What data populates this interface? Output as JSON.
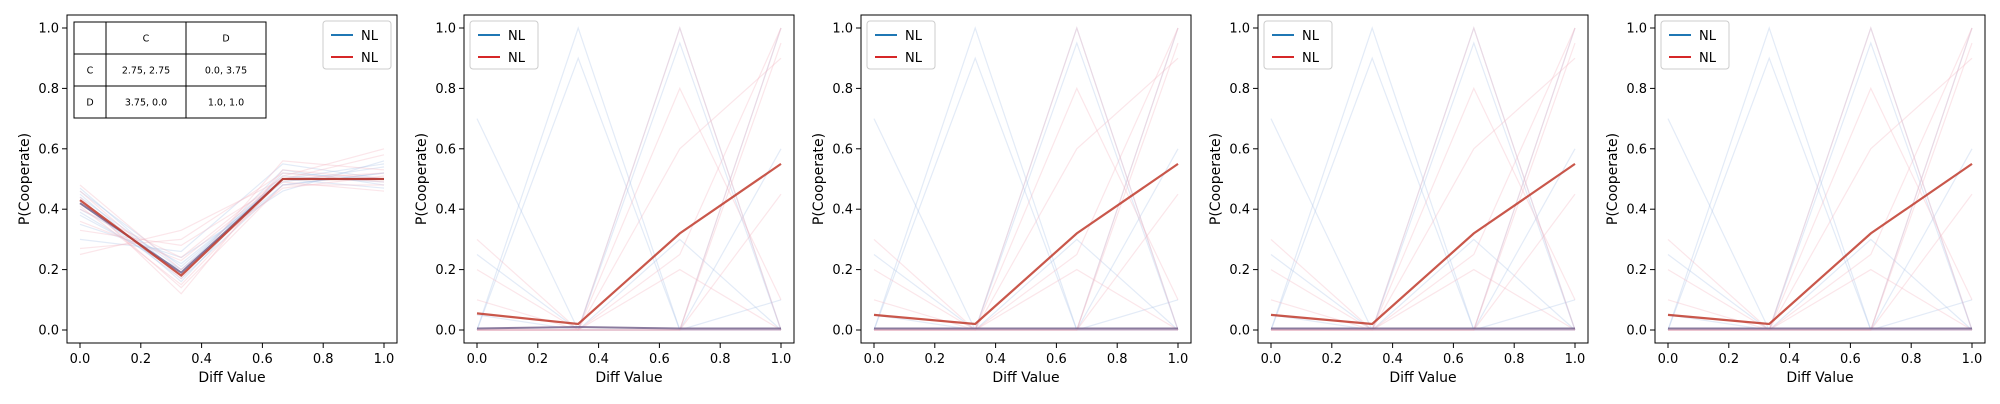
{
  "chart_data": [
    {
      "type": "line",
      "xlabel": "Diff Value",
      "ylabel": "P(Cooperate)",
      "xlim": [
        0,
        1
      ],
      "ylim": [
        0,
        1
      ],
      "xticks": [
        0.0,
        0.2,
        0.4,
        0.6,
        0.8,
        1.0
      ],
      "yticks": [
        0.0,
        0.2,
        0.4,
        0.6,
        0.8,
        1.0
      ],
      "x": [
        0,
        0.333,
        0.667,
        1
      ],
      "legend": {
        "position": "top-right",
        "entries": [
          {
            "label": "NL",
            "color": "#1f77b4"
          },
          {
            "label": "NL",
            "color": "#d62728"
          }
        ]
      },
      "series": [
        {
          "name": "NL",
          "color": "#1f77b4",
          "values": [
            0.42,
            0.19,
            0.5,
            0.5
          ]
        },
        {
          "name": "NL",
          "color": "#d62728",
          "values": [
            0.43,
            0.18,
            0.5,
            0.5
          ]
        }
      ],
      "faint_series_blue": [
        [
          0.38,
          0.2,
          0.48,
          0.52
        ],
        [
          0.45,
          0.16,
          0.52,
          0.5
        ],
        [
          0.4,
          0.22,
          0.49,
          0.54
        ],
        [
          0.47,
          0.18,
          0.5,
          0.47
        ],
        [
          0.35,
          0.24,
          0.46,
          0.56
        ],
        [
          0.44,
          0.2,
          0.51,
          0.49
        ],
        [
          0.3,
          0.26,
          0.55,
          0.5
        ],
        [
          0.42,
          0.17,
          0.48,
          0.52
        ],
        [
          0.46,
          0.21,
          0.5,
          0.55
        ],
        [
          0.39,
          0.19,
          0.53,
          0.48
        ]
      ],
      "faint_series_red": [
        [
          0.41,
          0.15,
          0.5,
          0.52
        ],
        [
          0.27,
          0.3,
          0.52,
          0.49
        ],
        [
          0.48,
          0.2,
          0.47,
          0.51
        ],
        [
          0.36,
          0.23,
          0.5,
          0.58
        ],
        [
          0.44,
          0.12,
          0.53,
          0.5
        ],
        [
          0.33,
          0.28,
          0.49,
          0.46
        ],
        [
          0.46,
          0.17,
          0.56,
          0.53
        ],
        [
          0.4,
          0.24,
          0.51,
          0.6
        ],
        [
          0.25,
          0.33,
          0.5,
          0.5
        ],
        [
          0.43,
          0.14,
          0.48,
          0.48
        ]
      ],
      "payoff_table": {
        "col_headers": [
          "",
          "C",
          "D"
        ],
        "rows": [
          [
            "C",
            "2.75, 2.75",
            "0.0, 3.75"
          ],
          [
            "D",
            "3.75, 0.0",
            "1.0, 1.0"
          ]
        ]
      }
    },
    {
      "type": "line",
      "xlabel": "Diff Value",
      "ylabel": "P(Cooperate)",
      "xlim": [
        0,
        1
      ],
      "ylim": [
        0,
        1
      ],
      "xticks": [
        0.0,
        0.2,
        0.4,
        0.6,
        0.8,
        1.0
      ],
      "yticks": [
        0.0,
        0.2,
        0.4,
        0.6,
        0.8,
        1.0
      ],
      "x": [
        0,
        0.333,
        0.667,
        1
      ],
      "legend": {
        "position": "top-left",
        "entries": [
          {
            "label": "NL",
            "color": "#1f77b4"
          },
          {
            "label": "NL",
            "color": "#d62728"
          }
        ]
      },
      "series": [
        {
          "name": "NL",
          "color": "#1f77b4",
          "values": [
            0.005,
            0.01,
            0.005,
            0.005
          ]
        },
        {
          "name": "NL",
          "color": "#d62728",
          "values": [
            0.055,
            0.02,
            0.32,
            0.55
          ]
        }
      ],
      "faint_series_blue": [
        [
          0.0,
          1.0,
          0.0,
          0.0
        ],
        [
          0.7,
          0.0,
          0.0,
          0.0
        ],
        [
          0.0,
          0.0,
          1.0,
          0.0
        ],
        [
          0.0,
          0.0,
          0.0,
          1.0
        ],
        [
          0.0,
          0.9,
          0.0,
          0.0
        ],
        [
          0.25,
          0.0,
          0.0,
          0.1
        ],
        [
          0.0,
          0.0,
          0.95,
          0.0
        ],
        [
          0.0,
          0.0,
          0.0,
          0.6
        ],
        [
          0.05,
          0.0,
          0.0,
          0.0
        ],
        [
          0.0,
          0.0,
          0.3,
          0.0
        ]
      ],
      "faint_series_red": [
        [
          0.0,
          0.0,
          1.0,
          0.0
        ],
        [
          0.0,
          0.0,
          0.0,
          1.0
        ],
        [
          0.3,
          0.0,
          0.0,
          0.0
        ],
        [
          0.0,
          0.0,
          0.0,
          0.95
        ],
        [
          0.0,
          0.0,
          0.8,
          0.1
        ],
        [
          0.1,
          0.0,
          0.25,
          1.0
        ],
        [
          0.0,
          0.0,
          0.0,
          0.45
        ],
        [
          0.0,
          0.0,
          0.2,
          0.0
        ],
        [
          0.0,
          0.0,
          0.6,
          0.9
        ],
        [
          0.2,
          0.0,
          0.0,
          0.0
        ]
      ]
    },
    {
      "type": "line",
      "xlabel": "Diff Value",
      "ylabel": "P(Cooperate)",
      "xlim": [
        0,
        1
      ],
      "ylim": [
        0,
        1
      ],
      "xticks": [
        0.0,
        0.2,
        0.4,
        0.6,
        0.8,
        1.0
      ],
      "yticks": [
        0.0,
        0.2,
        0.4,
        0.6,
        0.8,
        1.0
      ],
      "x": [
        0,
        0.333,
        0.667,
        1
      ],
      "legend": {
        "position": "top-left",
        "entries": [
          {
            "label": "NL",
            "color": "#1f77b4"
          },
          {
            "label": "NL",
            "color": "#d62728"
          }
        ]
      },
      "series": [
        {
          "name": "NL",
          "color": "#1f77b4",
          "values": [
            0.005,
            0.005,
            0.005,
            0.005
          ]
        },
        {
          "name": "NL",
          "color": "#d62728",
          "values": [
            0.05,
            0.02,
            0.32,
            0.55
          ]
        }
      ],
      "faint_series_blue": [
        [
          0.0,
          1.0,
          0.0,
          0.0
        ],
        [
          0.7,
          0.0,
          0.0,
          0.0
        ],
        [
          0.0,
          0.0,
          1.0,
          0.0
        ],
        [
          0.0,
          0.0,
          0.0,
          1.0
        ],
        [
          0.0,
          0.9,
          0.0,
          0.0
        ],
        [
          0.25,
          0.0,
          0.0,
          0.1
        ],
        [
          0.0,
          0.0,
          0.95,
          0.0
        ],
        [
          0.0,
          0.0,
          0.0,
          0.6
        ],
        [
          0.05,
          0.0,
          0.0,
          0.0
        ],
        [
          0.0,
          0.0,
          0.3,
          0.0
        ]
      ],
      "faint_series_red": [
        [
          0.0,
          0.0,
          1.0,
          0.0
        ],
        [
          0.0,
          0.0,
          0.0,
          1.0
        ],
        [
          0.3,
          0.0,
          0.0,
          0.0
        ],
        [
          0.0,
          0.0,
          0.0,
          0.95
        ],
        [
          0.0,
          0.0,
          0.8,
          0.1
        ],
        [
          0.1,
          0.0,
          0.25,
          1.0
        ],
        [
          0.0,
          0.0,
          0.0,
          0.45
        ],
        [
          0.0,
          0.0,
          0.2,
          0.0
        ],
        [
          0.0,
          0.0,
          0.6,
          0.9
        ],
        [
          0.2,
          0.0,
          0.0,
          0.0
        ]
      ]
    },
    {
      "type": "line",
      "xlabel": "Diff Value",
      "ylabel": "P(Cooperate)",
      "xlim": [
        0,
        1
      ],
      "ylim": [
        0,
        1
      ],
      "xticks": [
        0.0,
        0.2,
        0.4,
        0.6,
        0.8,
        1.0
      ],
      "yticks": [
        0.0,
        0.2,
        0.4,
        0.6,
        0.8,
        1.0
      ],
      "x": [
        0,
        0.333,
        0.667,
        1
      ],
      "legend": {
        "position": "top-left",
        "entries": [
          {
            "label": "NL",
            "color": "#1f77b4"
          },
          {
            "label": "NL",
            "color": "#d62728"
          }
        ]
      },
      "series": [
        {
          "name": "NL",
          "color": "#1f77b4",
          "values": [
            0.005,
            0.005,
            0.005,
            0.005
          ]
        },
        {
          "name": "NL",
          "color": "#d62728",
          "values": [
            0.05,
            0.02,
            0.32,
            0.55
          ]
        }
      ],
      "faint_series_blue": [
        [
          0.0,
          1.0,
          0.0,
          0.0
        ],
        [
          0.7,
          0.0,
          0.0,
          0.0
        ],
        [
          0.0,
          0.0,
          1.0,
          0.0
        ],
        [
          0.0,
          0.0,
          0.0,
          1.0
        ],
        [
          0.0,
          0.9,
          0.0,
          0.0
        ],
        [
          0.25,
          0.0,
          0.0,
          0.1
        ],
        [
          0.0,
          0.0,
          0.95,
          0.0
        ],
        [
          0.0,
          0.0,
          0.0,
          0.6
        ],
        [
          0.05,
          0.0,
          0.0,
          0.0
        ],
        [
          0.0,
          0.0,
          0.3,
          0.0
        ]
      ],
      "faint_series_red": [
        [
          0.0,
          0.0,
          1.0,
          0.0
        ],
        [
          0.0,
          0.0,
          0.0,
          1.0
        ],
        [
          0.3,
          0.0,
          0.0,
          0.0
        ],
        [
          0.0,
          0.0,
          0.0,
          0.95
        ],
        [
          0.0,
          0.0,
          0.8,
          0.1
        ],
        [
          0.1,
          0.0,
          0.25,
          1.0
        ],
        [
          0.0,
          0.0,
          0.0,
          0.45
        ],
        [
          0.0,
          0.0,
          0.2,
          0.0
        ],
        [
          0.0,
          0.0,
          0.6,
          0.9
        ],
        [
          0.2,
          0.0,
          0.0,
          0.0
        ]
      ]
    },
    {
      "type": "line",
      "xlabel": "Diff Value",
      "ylabel": "P(Cooperate)",
      "xlim": [
        0,
        1
      ],
      "ylim": [
        0,
        1
      ],
      "xticks": [
        0.0,
        0.2,
        0.4,
        0.6,
        0.8,
        1.0
      ],
      "yticks": [
        0.0,
        0.2,
        0.4,
        0.6,
        0.8,
        1.0
      ],
      "x": [
        0,
        0.333,
        0.667,
        1
      ],
      "legend": {
        "position": "top-left",
        "entries": [
          {
            "label": "NL",
            "color": "#1f77b4"
          },
          {
            "label": "NL",
            "color": "#d62728"
          }
        ]
      },
      "series": [
        {
          "name": "NL",
          "color": "#1f77b4",
          "values": [
            0.005,
            0.005,
            0.005,
            0.005
          ]
        },
        {
          "name": "NL",
          "color": "#d62728",
          "values": [
            0.05,
            0.02,
            0.32,
            0.55
          ]
        }
      ],
      "faint_series_blue": [
        [
          0.0,
          1.0,
          0.0,
          0.0
        ],
        [
          0.7,
          0.0,
          0.0,
          0.0
        ],
        [
          0.0,
          0.0,
          1.0,
          0.0
        ],
        [
          0.0,
          0.0,
          0.0,
          1.0
        ],
        [
          0.0,
          0.9,
          0.0,
          0.0
        ],
        [
          0.25,
          0.0,
          0.0,
          0.1
        ],
        [
          0.0,
          0.0,
          0.95,
          0.0
        ],
        [
          0.0,
          0.0,
          0.0,
          0.6
        ],
        [
          0.05,
          0.0,
          0.0,
          0.0
        ],
        [
          0.0,
          0.0,
          0.3,
          0.0
        ]
      ],
      "faint_series_red": [
        [
          0.0,
          0.0,
          1.0,
          0.0
        ],
        [
          0.0,
          0.0,
          0.0,
          1.0
        ],
        [
          0.3,
          0.0,
          0.0,
          0.0
        ],
        [
          0.0,
          0.0,
          0.0,
          0.95
        ],
        [
          0.0,
          0.0,
          0.8,
          0.1
        ],
        [
          0.1,
          0.0,
          0.25,
          1.0
        ],
        [
          0.0,
          0.0,
          0.0,
          0.45
        ],
        [
          0.0,
          0.0,
          0.2,
          0.0
        ],
        [
          0.0,
          0.0,
          0.6,
          0.9
        ],
        [
          0.2,
          0.0,
          0.0,
          0.0
        ]
      ]
    }
  ]
}
